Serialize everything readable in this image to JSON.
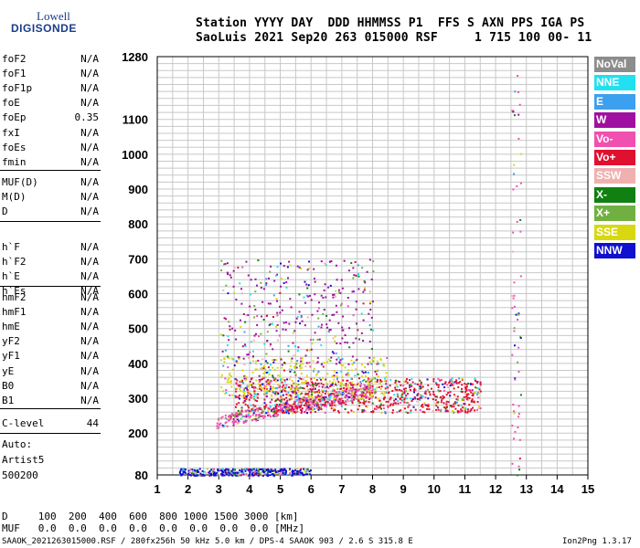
{
  "logo": {
    "line1": "Lowell",
    "line2": "DIGISONDE"
  },
  "header": {
    "row1": "Station YYYY DAY  DDD HHMMSS P1  FFS S AXN PPS IGA PS",
    "row2": "SaoLuis 2021 Sep20 263 015000 RSF     1 715 100 00- 11"
  },
  "params": {
    "group1": [
      {
        "name": "foF2",
        "value": "N/A"
      },
      {
        "name": "foF1",
        "value": "N/A"
      },
      {
        "name": "foF1p",
        "value": "N/A"
      },
      {
        "name": "foE",
        "value": "N/A"
      },
      {
        "name": "foEp",
        "value": "0.35"
      },
      {
        "name": "fxI",
        "value": "N/A"
      },
      {
        "name": "foEs",
        "value": "N/A"
      },
      {
        "name": "fmin",
        "value": "N/A"
      }
    ],
    "group2": [
      {
        "name": "MUF(D)",
        "value": "N/A"
      },
      {
        "name": "M(D)",
        "value": "N/A"
      },
      {
        "name": "D",
        "value": "N/A"
      }
    ],
    "group3": [
      {
        "name": "h`F",
        "value": "N/A"
      },
      {
        "name": "h`F2",
        "value": "N/A"
      },
      {
        "name": "h`E",
        "value": "N/A"
      },
      {
        "name": "h`Es",
        "value": "N/A"
      }
    ],
    "group4": [
      {
        "name": "hmF2",
        "value": "N/A"
      },
      {
        "name": "hmF1",
        "value": "N/A"
      },
      {
        "name": "hmE",
        "value": "N/A"
      },
      {
        "name": "yF2",
        "value": "N/A"
      },
      {
        "name": "yF1",
        "value": "N/A"
      },
      {
        "name": "yE",
        "value": "N/A"
      },
      {
        "name": "B0",
        "value": "N/A"
      },
      {
        "name": "B1",
        "value": "N/A"
      }
    ],
    "clevel": {
      "name": "C-level",
      "value": "44"
    }
  },
  "auto": {
    "line1": "Auto:",
    "line2": "Artist5",
    "line3": "500200"
  },
  "bottom": {
    "d_row": "D     100  200  400  600  800 1000 1500 3000 [km]",
    "muf_row": "MUF   0.0  0.0  0.0  0.0  0.0  0.0  0.0  0.0 [MHz]",
    "footer_left": "SAAOK_2021263015000.RSF / 280fx256h 50 kHz 5.0 km / DPS-4 SAAOK 903 / 2.6 S 315.8 E",
    "footer_right": "Ion2Png 1.3.17"
  },
  "legend": [
    {
      "label": "NoVal",
      "color": "#8c8c8c"
    },
    {
      "label": "NNE",
      "color": "#22e0f0"
    },
    {
      "label": "E",
      "color": "#3ca0f0"
    },
    {
      "label": "W",
      "color": "#a010a0"
    },
    {
      "label": "Vo-",
      "color": "#f050b0"
    },
    {
      "label": "Vo+",
      "color": "#e01030"
    },
    {
      "label": "SSW",
      "color": "#f0b0b0"
    },
    {
      "label": "X-",
      "color": "#108010"
    },
    {
      "label": "X+",
      "color": "#70b040"
    },
    {
      "label": "SSE",
      "color": "#d8d810"
    },
    {
      "label": "NNW",
      "color": "#1010d0"
    }
  ],
  "chart_data": {
    "type": "scatter",
    "title": "",
    "xlabel": "",
    "ylabel": "",
    "xlim": [
      1,
      15
    ],
    "ylim": [
      80,
      1280
    ],
    "x_ticks": [
      1,
      2,
      3,
      4,
      5,
      6,
      7,
      8,
      9,
      10,
      11,
      12,
      13,
      14,
      15
    ],
    "y_ticks": [
      80,
      200,
      300,
      400,
      500,
      600,
      700,
      800,
      900,
      1000,
      1100,
      1280
    ],
    "grid": true,
    "legend_placement": "right",
    "echo_regions": [
      {
        "description": "E-region echoes",
        "freq_range": [
          1.7,
          6.0
        ],
        "height_range": [
          80,
          100
        ],
        "dominant": "NNW"
      },
      {
        "description": "F-layer trace lower edge",
        "freq_range": [
          2.9,
          8.0
        ],
        "height_range": [
          215,
          300
        ],
        "dominant": "Vo-"
      },
      {
        "description": "F-layer main spread",
        "freq_range": [
          3.5,
          11.5
        ],
        "height_range": [
          260,
          360
        ],
        "dominant": "Vo+"
      },
      {
        "description": "X-mode trace",
        "freq_range": [
          3.0,
          8.5
        ],
        "height_range": [
          300,
          420
        ],
        "dominant": "SSE"
      },
      {
        "description": "Spread F high-altitude",
        "freq_range": [
          3.0,
          8.0
        ],
        "height_range": [
          400,
          700
        ],
        "dominant": "W"
      },
      {
        "description": "Vertical line near 12.7 MHz",
        "freq_range": [
          12.5,
          12.8
        ],
        "height_range": [
          80,
          1240
        ],
        "dominant": "Vo-"
      }
    ]
  }
}
